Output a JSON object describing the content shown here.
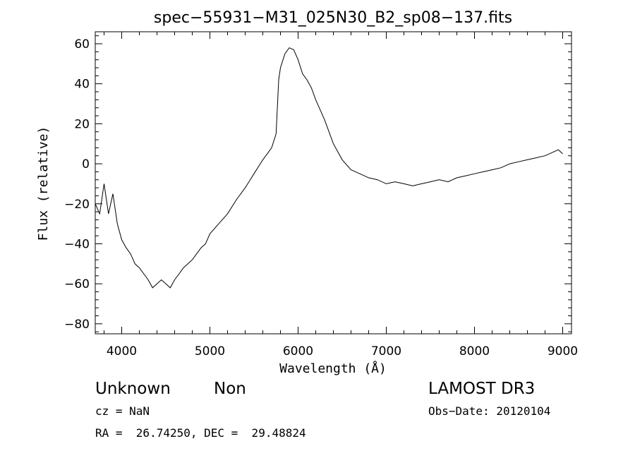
{
  "chart_data": {
    "type": "line",
    "title": "spec−55931−M31_025N30_B2_sp08−137.fits",
    "xlabel": "Wavelength (Å)",
    "ylabel": "Flux (relative)",
    "xlim": [
      3700,
      9100
    ],
    "ylim": [
      -85,
      66
    ],
    "xticks": [
      4000,
      5000,
      6000,
      7000,
      8000,
      9000
    ],
    "xtick_labels": [
      "4000",
      "5000",
      "6000",
      "7000",
      "8000",
      "9000"
    ],
    "yticks": [
      60,
      40,
      20,
      0,
      -20,
      -40,
      -60,
      -80
    ],
    "ytick_labels": [
      "60",
      "40",
      "20",
      "0",
      "−20",
      "−40",
      "−60",
      "−80"
    ],
    "grid": false,
    "series": [
      {
        "x": [
          3700,
          3750,
          3800,
          3850,
          3900,
          3950,
          4000,
          4050,
          4100,
          4150,
          4200,
          4250,
          4300,
          4350,
          4400,
          4450,
          4500,
          4550,
          4600,
          4650,
          4700,
          4750,
          4800,
          4850,
          4900,
          4950,
          5000,
          5100,
          5200,
          5300,
          5400,
          5500,
          5600,
          5650,
          5700,
          5750,
          5780,
          5800,
          5850,
          5900,
          5950,
          6000,
          6050,
          6100,
          6150,
          6200,
          6300,
          6400,
          6500,
          6600,
          6700,
          6800,
          6900,
          7000,
          7100,
          7200,
          7300,
          7400,
          7500,
          7600,
          7700,
          7800,
          7900,
          8000,
          8100,
          8200,
          8300,
          8400,
          8500,
          8600,
          8700,
          8800,
          8900,
          8950,
          9000
        ],
        "y": [
          -20,
          -25,
          -10,
          -25,
          -15,
          -30,
          -38,
          -42,
          -45,
          -50,
          -52,
          -55,
          -58,
          -62,
          -60,
          -58,
          -60,
          -62,
          -58,
          -55,
          -52,
          -50,
          -48,
          -45,
          -42,
          -40,
          -35,
          -30,
          -25,
          -18,
          -12,
          -5,
          2,
          5,
          8,
          15,
          42,
          48,
          55,
          58,
          57,
          52,
          45,
          42,
          38,
          32,
          22,
          10,
          2,
          -3,
          -5,
          -7,
          -8,
          -10,
          -9,
          -10,
          -11,
          -10,
          -9,
          -8,
          -9,
          -7,
          -6,
          -5,
          -4,
          -3,
          -2,
          0,
          1,
          2,
          3,
          4,
          6,
          7,
          5
        ]
      }
    ]
  },
  "annotations": {
    "object_class": "Unknown",
    "object_subclass": "Non",
    "survey": "LAMOST DR3",
    "redshift": "cz = NaN",
    "obs_date": "Obs−Date: 20120104",
    "coords": "RA =  26.74250, DEC =  29.48824"
  }
}
